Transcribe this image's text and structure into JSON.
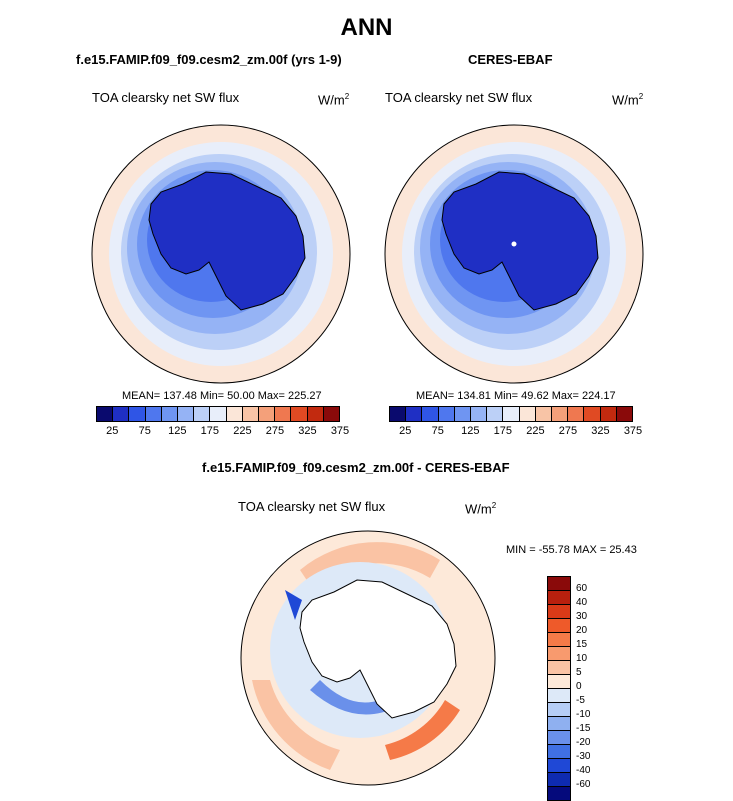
{
  "title": "ANN",
  "panels": {
    "model": {
      "heading": "f.e15.FAMIP.f09_f09.cesm2_zm.00f (yrs 1-9)",
      "variable": "TOA clearsky net SW flux",
      "units_base": "W/m",
      "units_exp": "2",
      "stats": "MEAN= 137.48  Min=  50.00  Max= 225.27"
    },
    "obs": {
      "heading": "CERES-EBAF",
      "variable": "TOA clearsky net SW flux",
      "units_base": "W/m",
      "units_exp": "2",
      "stats": "MEAN= 134.81  Min=  49.62  Max= 224.17"
    },
    "diff": {
      "heading": "f.e15.FAMIP.f09_f09.cesm2_zm.00f - CERES-EBAF",
      "variable": "TOA clearsky net SW flux",
      "units_base": "W/m",
      "units_exp": "2",
      "stats": "MIN = -55.78 MAX =  25.43"
    }
  },
  "abs_colorbar": {
    "colors": [
      "#0a0a6e",
      "#1f2fc4",
      "#2f55e6",
      "#4f77ee",
      "#6f95f2",
      "#95b3f5",
      "#bcd0f7",
      "#e8eefa",
      "#fbe6d8",
      "#f8c4a6",
      "#f4a07a",
      "#ef7850",
      "#e04a23",
      "#c22a0f",
      "#8a0a0a"
    ],
    "ticks": [
      "25",
      "75",
      "125",
      "175",
      "225",
      "275",
      "325",
      "375"
    ]
  },
  "diff_colorbar": {
    "colors": [
      "#8a0a0a",
      "#b8200e",
      "#d93a18",
      "#ee5a2a",
      "#f57a48",
      "#f89a6e",
      "#fac3a4",
      "#fde9d9",
      "#dde9f8",
      "#b5cdf5",
      "#8fb0f0",
      "#6a90ea",
      "#4070e3",
      "#1f48d6",
      "#0e2bb0",
      "#050a7c"
    ],
    "ticks": [
      "60",
      "40",
      "30",
      "20",
      "15",
      "10",
      "5",
      "0",
      "-5",
      "-10",
      "-15",
      "-20",
      "-30",
      "-40",
      "-60"
    ]
  }
}
